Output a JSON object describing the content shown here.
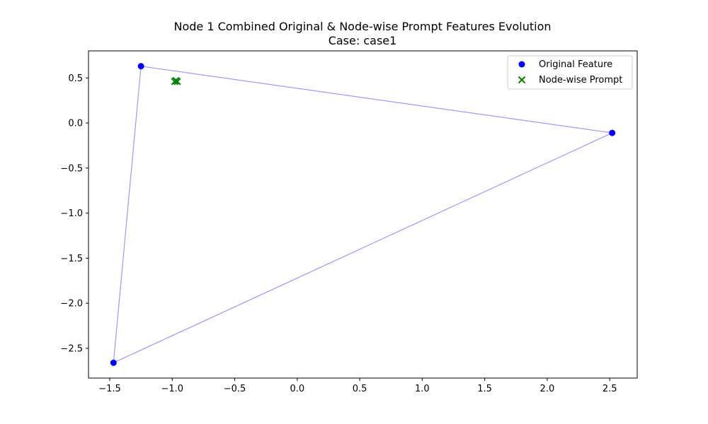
{
  "chart_data": {
    "type": "scatter",
    "title": "Node 1 Combined Original & Node-wise Prompt Features Evolution",
    "subtitle": "Case: case1",
    "xlabel": "",
    "ylabel": "",
    "xlim": [
      -1.67,
      2.72
    ],
    "ylim": [
      -2.83,
      0.8
    ],
    "x_ticks": [
      -1.5,
      -1.0,
      -0.5,
      0.0,
      0.5,
      1.0,
      1.5,
      2.0,
      2.5
    ],
    "x_tick_labels": [
      "−1.5",
      "−1.0",
      "−0.5",
      "0.0",
      "0.5",
      "1.0",
      "1.5",
      "2.0",
      "2.5"
    ],
    "y_ticks": [
      0.5,
      0.0,
      -0.5,
      -1.0,
      -1.5,
      -2.0,
      -2.5
    ],
    "y_tick_labels": [
      "0.5",
      "0.0",
      "−0.5",
      "−1.0",
      "−1.5",
      "−2.0",
      "−2.5"
    ],
    "grid": false,
    "legend_position": "top-right",
    "series": [
      {
        "name": "Original Feature",
        "marker": "circle",
        "color": "#0000ff",
        "points": [
          {
            "x": -1.25,
            "y": 0.63
          },
          {
            "x": 2.52,
            "y": -0.11
          },
          {
            "x": -1.47,
            "y": -2.66
          }
        ]
      },
      {
        "name": "Node-wise Prompt",
        "marker": "x",
        "color": "#008000",
        "points": [
          {
            "x": -0.97,
            "y": 0.47
          },
          {
            "x": -0.98,
            "y": 0.46
          },
          {
            "x": -0.96,
            "y": 0.46
          }
        ]
      }
    ],
    "polygon": {
      "color": "#9999ff",
      "vertices": [
        {
          "x": -1.25,
          "y": 0.63
        },
        {
          "x": 2.52,
          "y": -0.11
        },
        {
          "x": -1.47,
          "y": -2.66
        }
      ]
    }
  }
}
